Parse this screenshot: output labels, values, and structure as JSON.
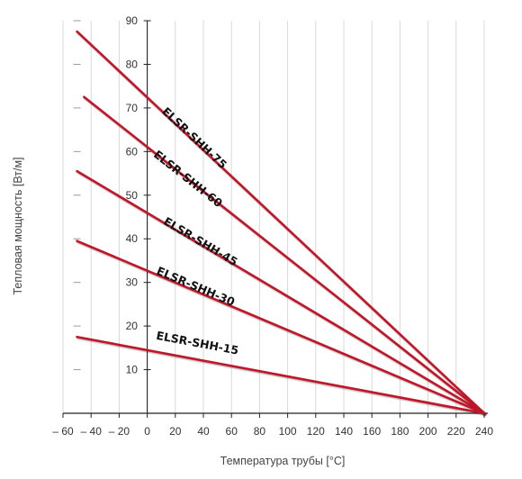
{
  "chart_data": {
    "type": "line",
    "xlabel": "Температура трубы [°C]",
    "ylabel": "Тепловая мощность [Вт/м]",
    "xlim": [
      -60,
      240
    ],
    "ylim": [
      0,
      90
    ],
    "x_ticks": [
      -60,
      -40,
      -20,
      0,
      20,
      40,
      60,
      80,
      100,
      120,
      140,
      160,
      180,
      200,
      220,
      240
    ],
    "x_tick_labels": [
      "– 60",
      "– 40",
      "– 20",
      "0",
      "20",
      "40",
      "60",
      "80",
      "100",
      "120",
      "140",
      "160",
      "180",
      "200",
      "220",
      "240"
    ],
    "y_ticks": [
      10,
      20,
      30,
      40,
      50,
      60,
      70,
      80,
      90
    ],
    "y_tick_labels": [
      "10",
      "20",
      "30",
      "40",
      "50",
      "60",
      "70",
      "80",
      "90"
    ],
    "grid": "vertical",
    "series": [
      {
        "name": "ELSR-SHH-75",
        "x": [
          -50,
          240
        ],
        "y": [
          87.5,
          0
        ],
        "label_pos": [
          10,
          69
        ]
      },
      {
        "name": "ELSR-SHH-60",
        "x": [
          -45,
          240
        ],
        "y": [
          72.5,
          0
        ],
        "label_pos": [
          4,
          59
        ]
      },
      {
        "name": "ELSR-SHH-45",
        "x": [
          -50,
          240
        ],
        "y": [
          55.5,
          0
        ],
        "label_pos": [
          11,
          43.5
        ]
      },
      {
        "name": "ELSR-SHH-30",
        "x": [
          -50,
          240
        ],
        "y": [
          39.5,
          0
        ],
        "label_pos": [
          6,
          32
        ]
      },
      {
        "name": "ELSR-SHH-15",
        "x": [
          -50,
          240
        ],
        "y": [
          17.5,
          0
        ],
        "label_pos": [
          6,
          17
        ]
      }
    ],
    "line_color": "#c0182a",
    "label_color": "#111111"
  }
}
